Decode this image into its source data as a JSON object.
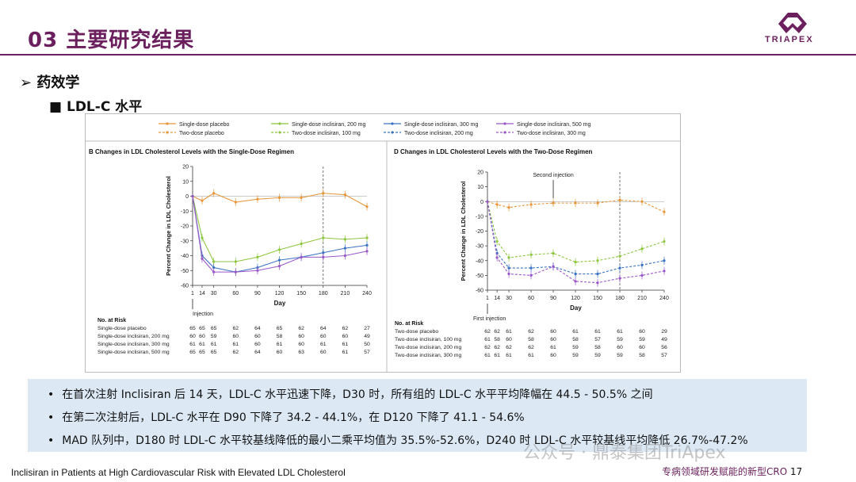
{
  "header": {
    "title": "03 主要研究结果",
    "logo_text": "TRIAPEX"
  },
  "section": {
    "label": "➢  药效学",
    "sub": "■   LDL-C 水平"
  },
  "legend": [
    {
      "name": "Single-dose placebo",
      "color": "#e8963a",
      "dash": false
    },
    {
      "name": "Single-dose inclisiran, 200 mg",
      "color": "#8dc63f",
      "dash": false
    },
    {
      "name": "Single-dose inclisiran, 300 mg",
      "color": "#3b73c4",
      "dash": false
    },
    {
      "name": "Single-dose inclisiran, 500 mg",
      "color": "#9a57c8",
      "dash": false
    },
    {
      "name": "Two-dose placebo",
      "color": "#e8963a",
      "dash": true
    },
    {
      "name": "Two-dose inclisiran, 100 mg",
      "color": "#8dc63f",
      "dash": true
    },
    {
      "name": "Two-dose inclisiran, 200 mg",
      "color": "#3b73c4",
      "dash": true
    },
    {
      "name": "Two-dose inclisiran, 300 mg",
      "color": "#9a57c8",
      "dash": true
    }
  ],
  "chart_data": [
    {
      "type": "line",
      "title": "B  Changes in LDL Cholesterol Levels with the Single-Dose Regimen",
      "xlabel": "Day",
      "ylabel": "Percent Change in LDL Cholesterol",
      "x": [
        1,
        14,
        30,
        60,
        90,
        120,
        150,
        180,
        210,
        240
      ],
      "xticks": [
        "1",
        "14",
        "30",
        "60",
        "90",
        "120",
        "150",
        "180",
        "210",
        "240"
      ],
      "ylim": [
        -60,
        20
      ],
      "yticks": [
        20,
        10,
        0,
        -10,
        -20,
        -30,
        -40,
        -50,
        -60
      ],
      "annotation": "Injection",
      "vline_day": 180,
      "series": [
        {
          "name": "Single-dose placebo",
          "color": "#e8963a",
          "dash": false,
          "values": [
            0,
            -3,
            2,
            -4,
            -2,
            -1,
            -1,
            2,
            1,
            -7
          ]
        },
        {
          "name": "Single-dose inclisiran, 200 mg",
          "color": "#8dc63f",
          "dash": false,
          "values": [
            0,
            -28,
            -44,
            -44,
            -41,
            -36,
            -32,
            -28,
            -29,
            -28
          ]
        },
        {
          "name": "Single-dose inclisiran, 300 mg",
          "color": "#3b73c4",
          "dash": false,
          "values": [
            0,
            -40,
            -48,
            -51,
            -48,
            -43,
            -41,
            -38,
            -35,
            -33
          ]
        },
        {
          "name": "Single-dose inclisiran, 500 mg",
          "color": "#9a57c8",
          "dash": false,
          "values": [
            0,
            -42,
            -51,
            -51,
            -50,
            -47,
            -41,
            -41,
            -40,
            -37
          ]
        }
      ],
      "risk": {
        "header": "No. at Risk",
        "rows": [
          {
            "label": "Single-dose placebo",
            "values": [
              "65",
              "65",
              "65",
              "62",
              "64",
              "65",
              "62",
              "64",
              "62",
              "27"
            ]
          },
          {
            "label": "Single-dose inclisiran, 200 mg",
            "values": [
              "60",
              "60",
              "59",
              "60",
              "60",
              "58",
              "60",
              "60",
              "60",
              "49"
            ]
          },
          {
            "label": "Single-dose inclisiran, 300 mg",
            "values": [
              "61",
              "61",
              "61",
              "61",
              "60",
              "61",
              "60",
              "61",
              "61",
              "50"
            ]
          },
          {
            "label": "Single-dose inclisiran, 500 mg",
            "values": [
              "65",
              "65",
              "65",
              "62",
              "64",
              "60",
              "63",
              "60",
              "61",
              "57"
            ]
          }
        ]
      }
    },
    {
      "type": "line",
      "title": "D  Changes in LDL Cholesterol Levels with the Two-Dose Regimen",
      "xlabel": "Day",
      "ylabel": "Percent Change in LDL Cholesterol",
      "x": [
        1,
        14,
        30,
        60,
        90,
        120,
        150,
        180,
        210,
        240
      ],
      "xticks": [
        "1",
        "14",
        "30",
        "60",
        "90",
        "120",
        "150",
        "180",
        "210",
        "240"
      ],
      "ylim": [
        -60,
        20
      ],
      "yticks": [
        20,
        10,
        0,
        -10,
        -20,
        -30,
        -40,
        -50,
        -60
      ],
      "annotation": "First injection",
      "annotation2": "Second injection",
      "vline_day": 180,
      "series": [
        {
          "name": "Two-dose placebo",
          "color": "#e8963a",
          "dash": true,
          "values": [
            0,
            -2,
            -4,
            -2,
            -1,
            -1,
            -1,
            1,
            0,
            -7
          ]
        },
        {
          "name": "Two-dose inclisiran, 100 mg",
          "color": "#8dc63f",
          "dash": true,
          "values": [
            0,
            -27,
            -38,
            -36,
            -35,
            -41,
            -40,
            -37,
            -32,
            -27
          ]
        },
        {
          "name": "Two-dose inclisiran, 200 mg",
          "color": "#3b73c4",
          "dash": true,
          "values": [
            0,
            -35,
            -45,
            -45,
            -44,
            -49,
            -49,
            -45,
            -43,
            -40
          ]
        },
        {
          "name": "Two-dose inclisiran, 300 mg",
          "color": "#9a57c8",
          "dash": true,
          "values": [
            0,
            -38,
            -49,
            -50,
            -44,
            -54,
            -55,
            -52,
            -50,
            -47
          ]
        }
      ],
      "risk": {
        "header": "No. at Risk",
        "rows": [
          {
            "label": "Two-dose placebo",
            "values": [
              "62",
              "62",
              "61",
              "62",
              "60",
              "61",
              "61",
              "61",
              "60",
              "29"
            ]
          },
          {
            "label": "Two-dose inclisiran, 100 mg",
            "values": [
              "61",
              "58",
              "60",
              "58",
              "60",
              "58",
              "57",
              "59",
              "59",
              "49"
            ]
          },
          {
            "label": "Two-dose inclisiran, 200 mg",
            "values": [
              "62",
              "62",
              "62",
              "62",
              "61",
              "59",
              "58",
              "60",
              "60",
              "56"
            ]
          },
          {
            "label": "Two-dose inclisiran, 300 mg",
            "values": [
              "61",
              "61",
              "61",
              "61",
              "60",
              "59",
              "59",
              "59",
              "58",
              "57"
            ]
          }
        ]
      }
    }
  ],
  "notes": [
    "在首次注射 Inclisiran 后 14 天，LDL-C 水平迅速下降，D30 时，所有组的 LDL-C 水平平均降幅在 44.5 - 50.5% 之间",
    "在第二次注射后，LDL-C 水平在 D90 下降了 34.2 - 44.1%，在 D120 下降了 41.1 - 54.6%",
    "MAD 队列中，D180 时 LDL-C 水平较基线降低的最小二乘平均值为 35.5%-52.6%，D240 时 LDL-C 水平较基线平均降低 26.7%-47.2%"
  ],
  "footer": {
    "citation": "Inclisiran in Patients at High Cardiovascular Risk with Elevated LDL Cholesterol",
    "tagline": "专病领域研发赋能的新型CRO",
    "page": "17",
    "watermark": "公众号 · 鼎泰集团TriApex"
  }
}
